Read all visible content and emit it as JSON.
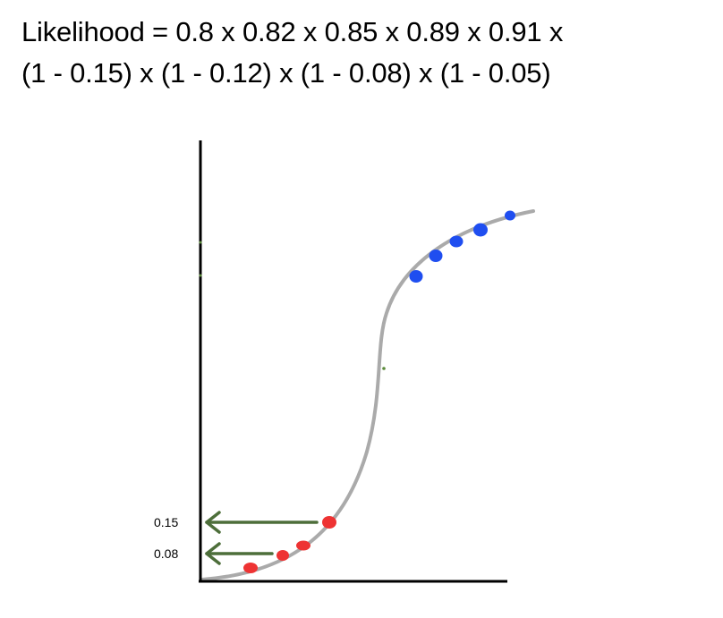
{
  "formula": {
    "line1": "Likelihood = 0.8 x 0.82 x 0.85 x 0.89 x 0.91 x",
    "line2": "(1 - 0.15) x (1 - 0.12) x (1 - 0.08) x (1 - 0.05)"
  },
  "annotations": {
    "upper_label": "0.15",
    "lower_label": "0.08"
  },
  "colors": {
    "curve": "#aaaaaa",
    "axes": "#000000",
    "positive_points": "#1f4ef0",
    "negative_points": "#ee3333",
    "arrows": "#4d6e3a"
  },
  "points": {
    "positive_count": 5,
    "negative_count": 4
  }
}
